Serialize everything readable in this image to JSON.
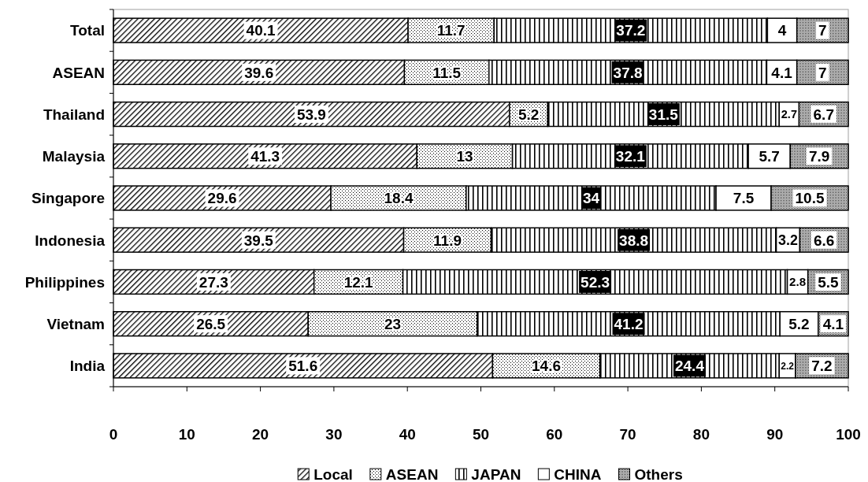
{
  "chart_data": {
    "type": "bar",
    "orientation": "horizontal",
    "stacked": true,
    "categories": [
      "Total",
      "ASEAN",
      "Thailand",
      "Malaysia",
      "Singapore",
      "Indonesia",
      "Philippines",
      "Vietnam",
      "India"
    ],
    "series": [
      {
        "name": "Local",
        "color": "#000000",
        "values": [
          40.1,
          39.6,
          53.9,
          41.3,
          29.6,
          39.5,
          27.3,
          26.5,
          51.6
        ]
      },
      {
        "name": "ASEAN",
        "color": "#000000",
        "values": [
          11.7,
          11.5,
          5.2,
          13,
          18.4,
          11.9,
          12.1,
          23,
          14.6
        ]
      },
      {
        "name": "JAPAN",
        "color": "#000000",
        "values": [
          37.2,
          37.8,
          31.5,
          32.1,
          34,
          38.8,
          52.3,
          41.2,
          24.4
        ]
      },
      {
        "name": "CHINA",
        "color": "#ffffff",
        "values": [
          4,
          4.1,
          2.7,
          5.7,
          7.5,
          3.2,
          2.8,
          5.2,
          2.2
        ]
      },
      {
        "name": "Others",
        "color": "#000000",
        "values": [
          7,
          7,
          6.7,
          7.9,
          10.5,
          6.6,
          5.5,
          4.1,
          7.2
        ]
      }
    ],
    "xlim": [
      0,
      100
    ],
    "xticks": [
      0,
      10,
      20,
      30,
      40,
      50,
      60,
      70,
      80,
      90,
      100
    ],
    "data_labels": true,
    "legend": "bottom"
  }
}
